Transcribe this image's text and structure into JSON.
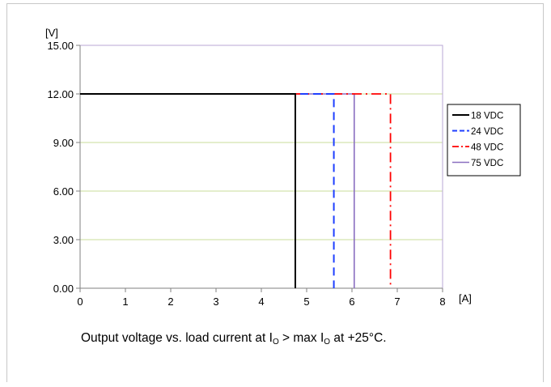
{
  "chart_data": {
    "type": "line",
    "ylabel": "[V]",
    "xlabel": "[A]",
    "xlim": [
      0,
      8
    ],
    "ylim": [
      0,
      15
    ],
    "x_ticks": [
      "0",
      "1",
      "2",
      "3",
      "4",
      "5",
      "6",
      "7",
      "8"
    ],
    "y_ticks": [
      "0.00",
      "3.00",
      "6.00",
      "9.00",
      "12.00",
      "15.00"
    ],
    "grid": true,
    "legend_position": "right",
    "series": [
      {
        "name": "18 VDC",
        "color": "#000000",
        "dash": "solid",
        "x": [
          0,
          4.75,
          4.75
        ],
        "y": [
          12,
          12,
          0
        ]
      },
      {
        "name": "24 VDC",
        "color": "#1f3fff",
        "dash": "dashed",
        "x": [
          0,
          5.6,
          5.6
        ],
        "y": [
          12,
          12,
          0
        ]
      },
      {
        "name": "48 VDC",
        "color": "#ff0000",
        "dash": "dashdot",
        "x": [
          0,
          6.85,
          6.85
        ],
        "y": [
          12,
          12,
          0
        ]
      },
      {
        "name": "75 VDC",
        "color": "#8a6fc0",
        "dash": "solid",
        "x": [
          0,
          6.05,
          6.05
        ],
        "y": [
          12,
          12,
          0
        ]
      }
    ]
  },
  "caption": {
    "prefix": "Output voltage vs. load current at I",
    "sub1": "O",
    "mid": " > max I",
    "sub2": "O",
    "suffix": " at +25°C."
  }
}
